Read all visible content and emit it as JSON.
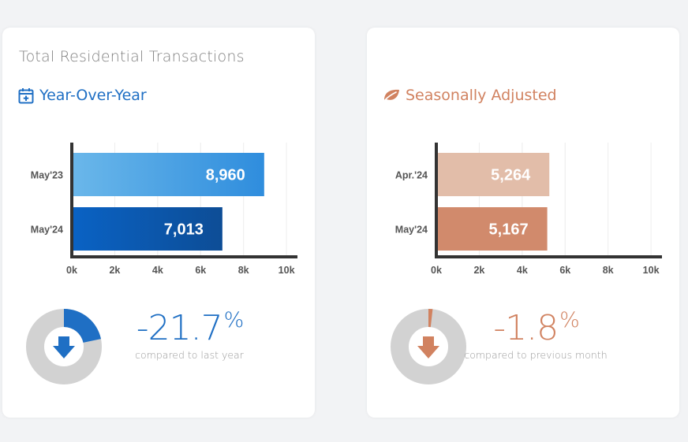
{
  "title": "Total Residential Transactions",
  "panels": [
    {
      "subtitle": "Year-Over-Year",
      "icon": "calendar-icon",
      "accent": "#1f6fc4",
      "change_value": "-21.7",
      "change_unit": "%",
      "caption": "compared to last year",
      "donut_fraction": 0.217
    },
    {
      "subtitle": "Seasonally Adjusted",
      "icon": "leaf-icon",
      "accent": "#d18260",
      "change_value": "-1.8",
      "change_unit": "%",
      "caption": "compared to previous month",
      "donut_fraction": 0.018
    }
  ],
  "chart_data": [
    {
      "type": "bar",
      "orientation": "horizontal",
      "categories": [
        "May'23",
        "May'24"
      ],
      "values": [
        8960,
        7013
      ],
      "value_labels": [
        "8,960",
        "7,013"
      ],
      "x_ticks": [
        "0k",
        "2k",
        "4k",
        "6k",
        "8k",
        "10k"
      ],
      "xlim": [
        0,
        10400
      ],
      "grid": true,
      "colors": [
        [
          "#6ab7ea",
          "#2f8ddd"
        ],
        [
          "#0a62c4",
          "#0d4d96"
        ]
      ]
    },
    {
      "type": "bar",
      "orientation": "horizontal",
      "categories": [
        "Apr.'24",
        "May'24"
      ],
      "values": [
        5264,
        5167
      ],
      "value_labels": [
        "5,264",
        "5,167"
      ],
      "x_ticks": [
        "0k",
        "2k",
        "4k",
        "6k",
        "8k",
        "10k"
      ],
      "xlim": [
        0,
        10400
      ],
      "grid": true,
      "colors": [
        [
          "#e2bda9",
          "#e2bda9"
        ],
        [
          "#d18a6c",
          "#d18a6c"
        ]
      ]
    }
  ]
}
